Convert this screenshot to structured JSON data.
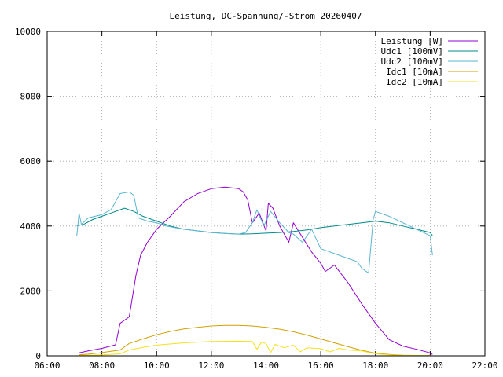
{
  "chart_data": {
    "type": "line",
    "title": "Leistung, DC-Spannung/-Strom 20260407",
    "xlabel": "",
    "ylabel": "",
    "xlim": [
      "06:00",
      "22:00"
    ],
    "ylim": [
      0,
      10000
    ],
    "x_ticks": [
      "06:00",
      "08:00",
      "10:00",
      "12:00",
      "14:00",
      "16:00",
      "18:00",
      "20:00",
      "22:00"
    ],
    "y_ticks": [
      "0",
      "2000",
      "4000",
      "6000",
      "8000",
      "10000"
    ],
    "grid": true,
    "legend_position": "top-right",
    "series": [
      {
        "name": "Leistung [W]",
        "color": "#9400d3",
        "points": [
          [
            "07:10",
            90
          ],
          [
            "07:30",
            150
          ],
          [
            "08:00",
            230
          ],
          [
            "08:30",
            340
          ],
          [
            "08:40",
            1000
          ],
          [
            "09:00",
            1200
          ],
          [
            "09:15",
            2500
          ],
          [
            "09:25",
            3100
          ],
          [
            "09:40",
            3500
          ],
          [
            "10:00",
            3900
          ],
          [
            "10:30",
            4300
          ],
          [
            "11:00",
            4750
          ],
          [
            "11:30",
            5000
          ],
          [
            "12:00",
            5150
          ],
          [
            "12:30",
            5200
          ],
          [
            "13:00",
            5150
          ],
          [
            "13:10",
            5050
          ],
          [
            "13:20",
            4800
          ],
          [
            "13:30",
            4100
          ],
          [
            "13:45",
            4400
          ],
          [
            "14:00",
            3850
          ],
          [
            "14:05",
            4700
          ],
          [
            "14:15",
            4550
          ],
          [
            "14:30",
            4000
          ],
          [
            "14:50",
            3500
          ],
          [
            "15:00",
            4100
          ],
          [
            "15:20",
            3650
          ],
          [
            "15:40",
            3200
          ],
          [
            "16:00",
            2850
          ],
          [
            "16:10",
            2600
          ],
          [
            "16:30",
            2800
          ],
          [
            "17:00",
            2250
          ],
          [
            "17:30",
            1600
          ],
          [
            "18:00",
            1000
          ],
          [
            "18:30",
            500
          ],
          [
            "19:00",
            300
          ],
          [
            "19:30",
            200
          ],
          [
            "20:00",
            90
          ],
          [
            "20:05",
            40
          ]
        ]
      },
      {
        "name": "Udc1 [100mV]",
        "color": "#008b8b",
        "points": [
          [
            "07:05",
            4000
          ],
          [
            "07:20",
            4050
          ],
          [
            "07:40",
            4200
          ],
          [
            "08:00",
            4300
          ],
          [
            "08:20",
            4400
          ],
          [
            "08:40",
            4500
          ],
          [
            "08:50",
            4550
          ],
          [
            "09:10",
            4450
          ],
          [
            "09:30",
            4300
          ],
          [
            "10:00",
            4150
          ],
          [
            "10:30",
            4000
          ],
          [
            "11:00",
            3900
          ],
          [
            "11:30",
            3850
          ],
          [
            "12:00",
            3800
          ],
          [
            "12:30",
            3770
          ],
          [
            "13:00",
            3750
          ],
          [
            "13:30",
            3760
          ],
          [
            "14:00",
            3780
          ],
          [
            "14:30",
            3800
          ],
          [
            "15:00",
            3830
          ],
          [
            "15:30",
            3880
          ],
          [
            "16:00",
            3950
          ],
          [
            "16:30",
            4000
          ],
          [
            "17:00",
            4050
          ],
          [
            "17:30",
            4100
          ],
          [
            "18:00",
            4150
          ],
          [
            "18:30",
            4100
          ],
          [
            "19:00",
            4000
          ],
          [
            "19:30",
            3900
          ],
          [
            "20:00",
            3800
          ],
          [
            "20:05",
            3700
          ]
        ]
      },
      {
        "name": "Udc2 [100mV]",
        "color": "#5bb5cf",
        "points": [
          [
            "07:05",
            3700
          ],
          [
            "07:10",
            4400
          ],
          [
            "07:15",
            4050
          ],
          [
            "07:30",
            4250
          ],
          [
            "08:00",
            4350
          ],
          [
            "08:20",
            4500
          ],
          [
            "08:40",
            5000
          ],
          [
            "09:00",
            5050
          ],
          [
            "09:10",
            4950
          ],
          [
            "09:20",
            4250
          ],
          [
            "09:40",
            4150
          ],
          [
            "10:00",
            4100
          ],
          [
            "10:20",
            4000
          ],
          [
            "11:00",
            3900
          ],
          [
            "11:30",
            3850
          ],
          [
            "12:00",
            3800
          ],
          [
            "12:30",
            3770
          ],
          [
            "13:00",
            3750
          ],
          [
            "13:15",
            3800
          ],
          [
            "13:30",
            4100
          ],
          [
            "13:40",
            4500
          ],
          [
            "13:55",
            4000
          ],
          [
            "14:10",
            4450
          ],
          [
            "14:30",
            4100
          ],
          [
            "14:50",
            3800
          ],
          [
            "15:00",
            3750
          ],
          [
            "15:20",
            3500
          ],
          [
            "15:40",
            3900
          ],
          [
            "16:00",
            3300
          ],
          [
            "16:30",
            3150
          ],
          [
            "17:00",
            3000
          ],
          [
            "17:20",
            2900
          ],
          [
            "17:30",
            2700
          ],
          [
            "17:45",
            2550
          ],
          [
            "17:55",
            4200
          ],
          [
            "18:00",
            4450
          ],
          [
            "18:30",
            4300
          ],
          [
            "19:00",
            4100
          ],
          [
            "19:30",
            3900
          ],
          [
            "20:00",
            3700
          ],
          [
            "20:05",
            3100
          ]
        ]
      },
      {
        "name": "Idc1 [10mA]",
        "color": "#d2a000",
        "points": [
          [
            "07:10",
            30
          ],
          [
            "07:30",
            50
          ],
          [
            "08:00",
            100
          ],
          [
            "08:40",
            180
          ],
          [
            "09:00",
            380
          ],
          [
            "09:30",
            520
          ],
          [
            "10:00",
            650
          ],
          [
            "10:30",
            750
          ],
          [
            "11:00",
            830
          ],
          [
            "11:30",
            880
          ],
          [
            "12:00",
            920
          ],
          [
            "12:30",
            940
          ],
          [
            "13:00",
            940
          ],
          [
            "13:30",
            920
          ],
          [
            "14:00",
            880
          ],
          [
            "14:30",
            820
          ],
          [
            "15:00",
            740
          ],
          [
            "15:30",
            640
          ],
          [
            "16:00",
            520
          ],
          [
            "16:30",
            400
          ],
          [
            "17:00",
            280
          ],
          [
            "17:30",
            170
          ],
          [
            "18:00",
            80
          ],
          [
            "18:30",
            40
          ],
          [
            "19:00",
            20
          ],
          [
            "20:00",
            5
          ],
          [
            "20:05",
            0
          ]
        ]
      },
      {
        "name": "Idc2 [10mA]",
        "color": "#f5e020",
        "points": [
          [
            "07:10",
            10
          ],
          [
            "08:00",
            30
          ],
          [
            "08:40",
            60
          ],
          [
            "09:00",
            180
          ],
          [
            "09:30",
            260
          ],
          [
            "10:00",
            330
          ],
          [
            "11:00",
            400
          ],
          [
            "12:00",
            440
          ],
          [
            "13:00",
            450
          ],
          [
            "13:30",
            440
          ],
          [
            "13:40",
            200
          ],
          [
            "13:50",
            420
          ],
          [
            "14:00",
            380
          ],
          [
            "14:10",
            100
          ],
          [
            "14:20",
            350
          ],
          [
            "14:40",
            250
          ],
          [
            "15:00",
            330
          ],
          [
            "15:15",
            120
          ],
          [
            "15:30",
            250
          ],
          [
            "16:00",
            220
          ],
          [
            "16:20",
            120
          ],
          [
            "16:40",
            230
          ],
          [
            "17:00",
            180
          ],
          [
            "17:30",
            150
          ],
          [
            "18:00",
            60
          ],
          [
            "18:30",
            30
          ],
          [
            "19:00",
            15
          ],
          [
            "20:00",
            5
          ],
          [
            "20:05",
            0
          ]
        ]
      }
    ]
  }
}
